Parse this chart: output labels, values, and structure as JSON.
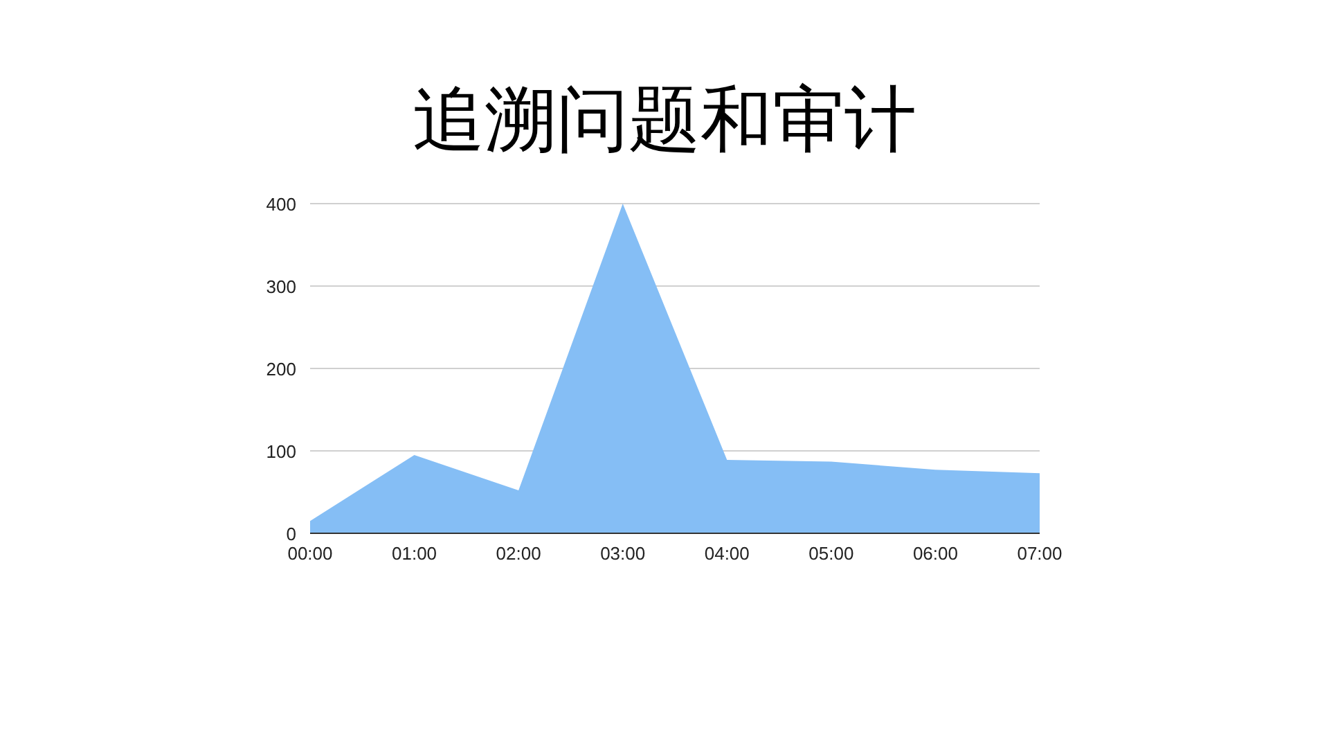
{
  "chart_data": {
    "type": "area",
    "title": "追溯问题和审计",
    "x": [
      0,
      1,
      2,
      3,
      4,
      5,
      6,
      7
    ],
    "xlim": [
      0,
      7
    ],
    "xticks": [
      {
        "value": 0,
        "label": "00:00"
      },
      {
        "value": 1,
        "label": "01:00"
      },
      {
        "value": 2,
        "label": "02:00"
      },
      {
        "value": 3,
        "label": "03:00"
      },
      {
        "value": 4,
        "label": "04:00"
      },
      {
        "value": 5,
        "label": "05:00"
      },
      {
        "value": 6,
        "label": "06:00"
      },
      {
        "value": 7,
        "label": "07:00"
      }
    ],
    "ylim": [
      0,
      400
    ],
    "yticks": [
      0,
      100,
      200,
      300,
      400
    ],
    "grid": "y",
    "series": [
      {
        "color": "#85bef5",
        "values": [
          15,
          95,
          52,
          400,
          89,
          87,
          77,
          73
        ]
      }
    ]
  }
}
